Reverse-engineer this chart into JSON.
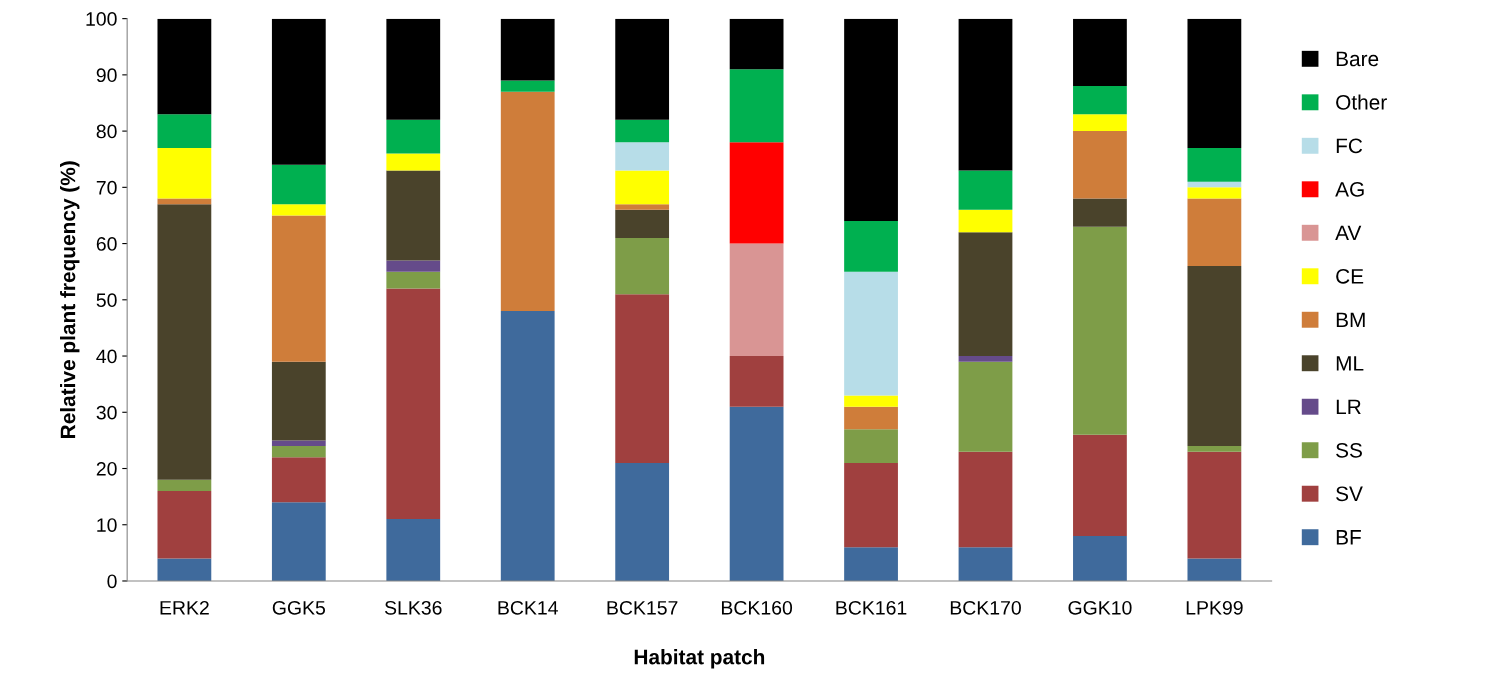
{
  "chart_data": {
    "type": "bar",
    "stacked": true,
    "xlabel": "Habitat patch",
    "ylabel": "Relative plant frequency (%)",
    "categories": [
      "ERK2",
      "GGK5",
      "SLK36",
      "BCK14",
      "BCK157",
      "BCK160",
      "BCK161",
      "BCK170",
      "GGK10",
      "LPK99"
    ],
    "ylim": [
      0,
      100
    ],
    "yticks": [
      0,
      10,
      20,
      30,
      40,
      50,
      60,
      70,
      80,
      90,
      100
    ],
    "grid": false,
    "legend": "right",
    "series": [
      {
        "name": "BF",
        "color": "#3f6a9c",
        "values": [
          4,
          14,
          11,
          48,
          21,
          31,
          6,
          6,
          8,
          4
        ]
      },
      {
        "name": "SV",
        "color": "#a0403f",
        "values": [
          12,
          8,
          41,
          0,
          30,
          9,
          15,
          17,
          18,
          19
        ]
      },
      {
        "name": "SS",
        "color": "#7e9d48",
        "values": [
          2,
          2,
          3,
          0,
          10,
          0,
          6,
          16,
          37,
          1
        ]
      },
      {
        "name": "LR",
        "color": "#654b8a",
        "values": [
          0,
          1,
          2,
          0,
          0,
          0,
          0,
          1,
          0,
          0
        ]
      },
      {
        "name": "ML",
        "color": "#4a432b",
        "values": [
          49,
          14,
          16,
          0,
          5,
          0,
          0,
          22,
          5,
          32
        ]
      },
      {
        "name": "BM",
        "color": "#cf7d3a",
        "values": [
          1,
          26,
          0,
          39,
          1,
          0,
          4,
          0,
          12,
          12
        ]
      },
      {
        "name": "CE",
        "color": "#ffff00",
        "values": [
          9,
          2,
          3,
          0,
          6,
          0,
          2,
          4,
          3,
          2
        ]
      },
      {
        "name": "AV",
        "color": "#d99594",
        "values": [
          0,
          0,
          0,
          0,
          0,
          20,
          0,
          0,
          0,
          0
        ]
      },
      {
        "name": "AG",
        "color": "#ff0000",
        "values": [
          0,
          0,
          0,
          0,
          0,
          18,
          0,
          0,
          0,
          0
        ]
      },
      {
        "name": "FC",
        "color": "#b7dde8",
        "values": [
          0,
          0,
          0,
          0,
          5,
          0,
          22,
          0,
          0,
          1
        ]
      },
      {
        "name": "Other",
        "color": "#00b050",
        "values": [
          6,
          7,
          6,
          2,
          4,
          13,
          9,
          7,
          5,
          6
        ]
      },
      {
        "name": "Bare",
        "color": "#000000",
        "values": [
          17,
          26,
          18,
          11,
          18,
          9,
          36,
          27,
          12,
          23
        ]
      }
    ]
  }
}
